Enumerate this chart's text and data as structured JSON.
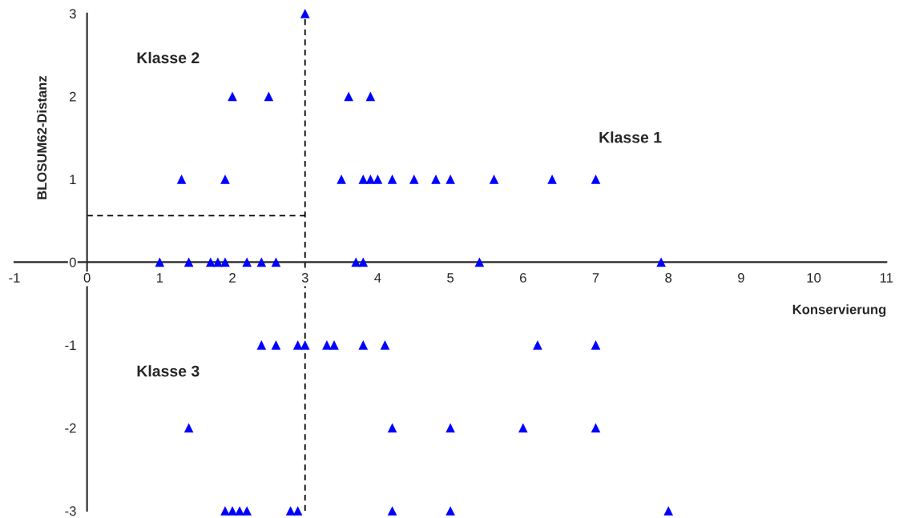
{
  "chart_data": {
    "type": "scatter",
    "xlabel": "Konservierung",
    "ylabel": "BLOSUM62-Distanz",
    "annotations": [
      "Klasse 2",
      "Klasse 1",
      "Klasse 3"
    ],
    "marker": "triangle",
    "grid": false,
    "legend": false,
    "xlim": [
      -1,
      11
    ],
    "ylim": [
      -3,
      3
    ],
    "xticks": [
      -1,
      0,
      1,
      2,
      3,
      4,
      5,
      6,
      7,
      8,
      9,
      10,
      11
    ],
    "yticks": [
      -3,
      -2,
      -1,
      0,
      1,
      2,
      3
    ],
    "series": [
      {
        "type": "line",
        "color": "#000000",
        "line_style": "dashed",
        "marker": "none",
        "x": [
          3,
          3
        ],
        "values": [
          -3,
          3
        ]
      },
      {
        "type": "line",
        "color": "#000000",
        "line_style": "dashed",
        "marker": "none",
        "x": [
          0,
          3
        ],
        "values": [
          0.56,
          0.56
        ]
      },
      {
        "color": "#0000ff",
        "x": [
          3,
          2.0,
          2.5,
          3.6,
          3.9,
          1.3,
          1.9,
          3.5,
          3.8,
          3.9,
          4.0,
          4.2,
          4.5,
          4.8,
          5.0,
          5.6,
          6.4,
          7.0,
          1.0,
          1.4,
          1.7,
          1.8,
          1.9,
          2.2,
          2.4,
          2.6,
          3.7,
          3.8,
          5.4,
          7.9,
          2.4,
          2.6,
          2.9,
          3.0,
          3.3,
          3.4,
          3.8,
          4.1,
          6.2,
          7.0,
          1.4,
          4.2,
          5.0,
          6.0,
          7.0,
          1.9,
          2.0,
          2.1,
          2.2,
          2.8,
          2.9,
          4.2,
          5.0,
          8.0
        ],
        "values": [
          3,
          2,
          2,
          2,
          2,
          1,
          1,
          1,
          1,
          1,
          1,
          1,
          1,
          1,
          1,
          1,
          1,
          1,
          0,
          0,
          0,
          0,
          0,
          0,
          0,
          0,
          0,
          0,
          0,
          0,
          -1,
          -1,
          -1,
          -1,
          -1,
          -1,
          -1,
          -1,
          -1,
          -1,
          -2,
          -2,
          -2,
          -2,
          -2,
          -3,
          -3,
          -3,
          -3,
          -3,
          -3,
          -3,
          -3,
          -3
        ]
      }
    ]
  }
}
